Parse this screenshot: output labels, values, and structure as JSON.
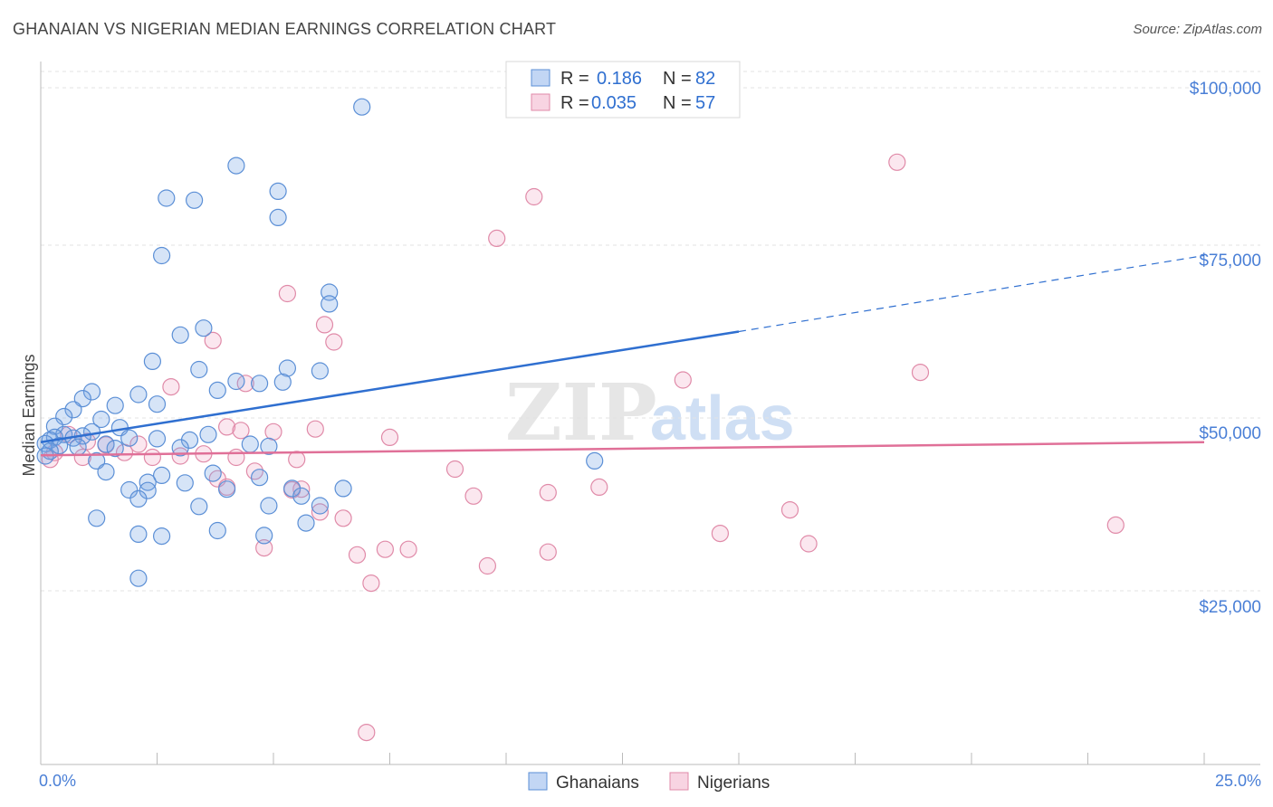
{
  "title": "GHANAIAN VS NIGERIAN MEDIAN EARNINGS CORRELATION CHART",
  "source": "Source: ZipAtlas.com",
  "watermark": {
    "zip": "ZIP",
    "atlas": "atlas"
  },
  "colors": {
    "blue": "#5b8fd6",
    "blue_fill": "rgba(120,165,230,0.30)",
    "blue_line": "#2f6fd0",
    "pink": "#e08aa8",
    "pink_fill": "rgba(240,160,190,0.25)",
    "pink_line": "#e07098",
    "label_blue": "#4a7fd6",
    "grid": "#dddddd"
  },
  "legend_top": [
    {
      "r_label": "R =",
      "r_value": "0.186",
      "n_label": "N =",
      "n_value": "82",
      "series": "Ghanaians"
    },
    {
      "r_label": "R =",
      "r_value": "0.035",
      "n_label": "N =",
      "n_value": "57",
      "series": "Nigerians"
    }
  ],
  "legend_bottom": [
    "Ghanaians",
    "Nigerians"
  ],
  "chart_data": {
    "type": "scatter",
    "title": "GHANAIAN VS NIGERIAN MEDIAN EARNINGS CORRELATION CHART",
    "xlabel": "",
    "ylabel": "Median Earnings",
    "xlim": [
      0,
      25
    ],
    "ylim": [
      0,
      105000
    ],
    "x_tick_labels": [
      "0.0%",
      "25.0%"
    ],
    "y_ticks": [
      25000,
      50000,
      75000,
      100000
    ],
    "y_tick_labels": [
      "$25,000",
      "$50,000",
      "$75,000",
      "$100,000"
    ],
    "grid": true,
    "series": [
      {
        "name": "Ghanaians",
        "color": "#5b8fd6",
        "trend": {
          "x0": 0,
          "y0": 46500,
          "x1": 15,
          "y1": 62500,
          "x_dash_end": 25,
          "y_dash_end": 73500
        },
        "points": [
          [
            6.9,
            95000
          ],
          [
            4.2,
            86500
          ],
          [
            5.1,
            82800
          ],
          [
            2.7,
            81800
          ],
          [
            3.3,
            81500
          ],
          [
            5.1,
            79000
          ],
          [
            2.6,
            73500
          ],
          [
            6.2,
            68200
          ],
          [
            6.2,
            66500
          ],
          [
            3.5,
            63000
          ],
          [
            3.0,
            62000
          ],
          [
            2.4,
            58200
          ],
          [
            5.3,
            57200
          ],
          [
            3.4,
            57000
          ],
          [
            6.0,
            56800
          ],
          [
            4.2,
            55300
          ],
          [
            4.7,
            55000
          ],
          [
            5.2,
            55200
          ],
          [
            3.8,
            54000
          ],
          [
            1.1,
            53800
          ],
          [
            2.1,
            53400
          ],
          [
            0.9,
            52800
          ],
          [
            2.5,
            52000
          ],
          [
            1.6,
            51800
          ],
          [
            0.7,
            51200
          ],
          [
            0.5,
            50200
          ],
          [
            1.3,
            49800
          ],
          [
            0.3,
            48800
          ],
          [
            1.7,
            48600
          ],
          [
            1.1,
            48000
          ],
          [
            0.5,
            47600
          ],
          [
            0.3,
            47200
          ],
          [
            0.2,
            46800
          ],
          [
            0.9,
            47400
          ],
          [
            0.7,
            47100
          ],
          [
            1.9,
            47100
          ],
          [
            2.5,
            47000
          ],
          [
            3.2,
            46800
          ],
          [
            3.6,
            47600
          ],
          [
            0.1,
            46300
          ],
          [
            0.4,
            46000
          ],
          [
            0.8,
            45800
          ],
          [
            1.4,
            46200
          ],
          [
            1.6,
            45600
          ],
          [
            0.2,
            45200
          ],
          [
            0.1,
            44500
          ],
          [
            3.0,
            45700
          ],
          [
            4.5,
            46200
          ],
          [
            4.9,
            45900
          ],
          [
            1.2,
            43800
          ],
          [
            1.4,
            42200
          ],
          [
            2.6,
            41700
          ],
          [
            4.7,
            41400
          ],
          [
            3.7,
            42000
          ],
          [
            1.9,
            39600
          ],
          [
            2.3,
            40700
          ],
          [
            2.3,
            39500
          ],
          [
            3.1,
            40600
          ],
          [
            4.0,
            39700
          ],
          [
            5.4,
            39800
          ],
          [
            6.5,
            39800
          ],
          [
            5.6,
            38700
          ],
          [
            2.1,
            38300
          ],
          [
            3.4,
            37200
          ],
          [
            4.9,
            37300
          ],
          [
            6.0,
            37300
          ],
          [
            1.2,
            35500
          ],
          [
            5.7,
            34800
          ],
          [
            3.8,
            33700
          ],
          [
            2.1,
            33200
          ],
          [
            2.6,
            32900
          ],
          [
            4.8,
            33000
          ],
          [
            2.1,
            26800
          ],
          [
            11.9,
            43800
          ]
        ]
      },
      {
        "name": "Nigerians",
        "color": "#e08aa8",
        "trend": {
          "x0": 0,
          "y0": 44600,
          "x1": 25,
          "y1": 46500
        },
        "points": [
          [
            18.4,
            87000
          ],
          [
            10.6,
            82000
          ],
          [
            9.8,
            76000
          ],
          [
            5.3,
            68000
          ],
          [
            6.1,
            63500
          ],
          [
            6.3,
            61000
          ],
          [
            3.7,
            61200
          ],
          [
            13.8,
            55500
          ],
          [
            18.9,
            56600
          ],
          [
            4.4,
            55000
          ],
          [
            2.8,
            54500
          ],
          [
            4.0,
            48700
          ],
          [
            4.3,
            48200
          ],
          [
            5.0,
            48000
          ],
          [
            5.9,
            48400
          ],
          [
            7.5,
            47200
          ],
          [
            0.6,
            47600
          ],
          [
            1.0,
            46600
          ],
          [
            1.4,
            46100
          ],
          [
            2.1,
            46200
          ],
          [
            1.8,
            45000
          ],
          [
            0.3,
            45000
          ],
          [
            0.2,
            44000
          ],
          [
            0.9,
            44300
          ],
          [
            2.4,
            44300
          ],
          [
            3.0,
            44500
          ],
          [
            3.5,
            44800
          ],
          [
            4.2,
            44300
          ],
          [
            5.5,
            44000
          ],
          [
            3.8,
            41200
          ],
          [
            8.9,
            42600
          ],
          [
            9.3,
            38700
          ],
          [
            4.6,
            42300
          ],
          [
            4.0,
            40000
          ],
          [
            5.6,
            39700
          ],
          [
            5.4,
            39600
          ],
          [
            10.9,
            39200
          ],
          [
            12.0,
            40000
          ],
          [
            16.1,
            36700
          ],
          [
            6.0,
            36400
          ],
          [
            6.5,
            35500
          ],
          [
            23.1,
            34500
          ],
          [
            14.6,
            33300
          ],
          [
            16.5,
            31800
          ],
          [
            4.8,
            31200
          ],
          [
            7.4,
            31000
          ],
          [
            7.9,
            31000
          ],
          [
            10.9,
            30600
          ],
          [
            6.8,
            30200
          ],
          [
            9.6,
            28600
          ],
          [
            7.1,
            26100
          ],
          [
            7.0,
            4500
          ]
        ]
      }
    ]
  }
}
